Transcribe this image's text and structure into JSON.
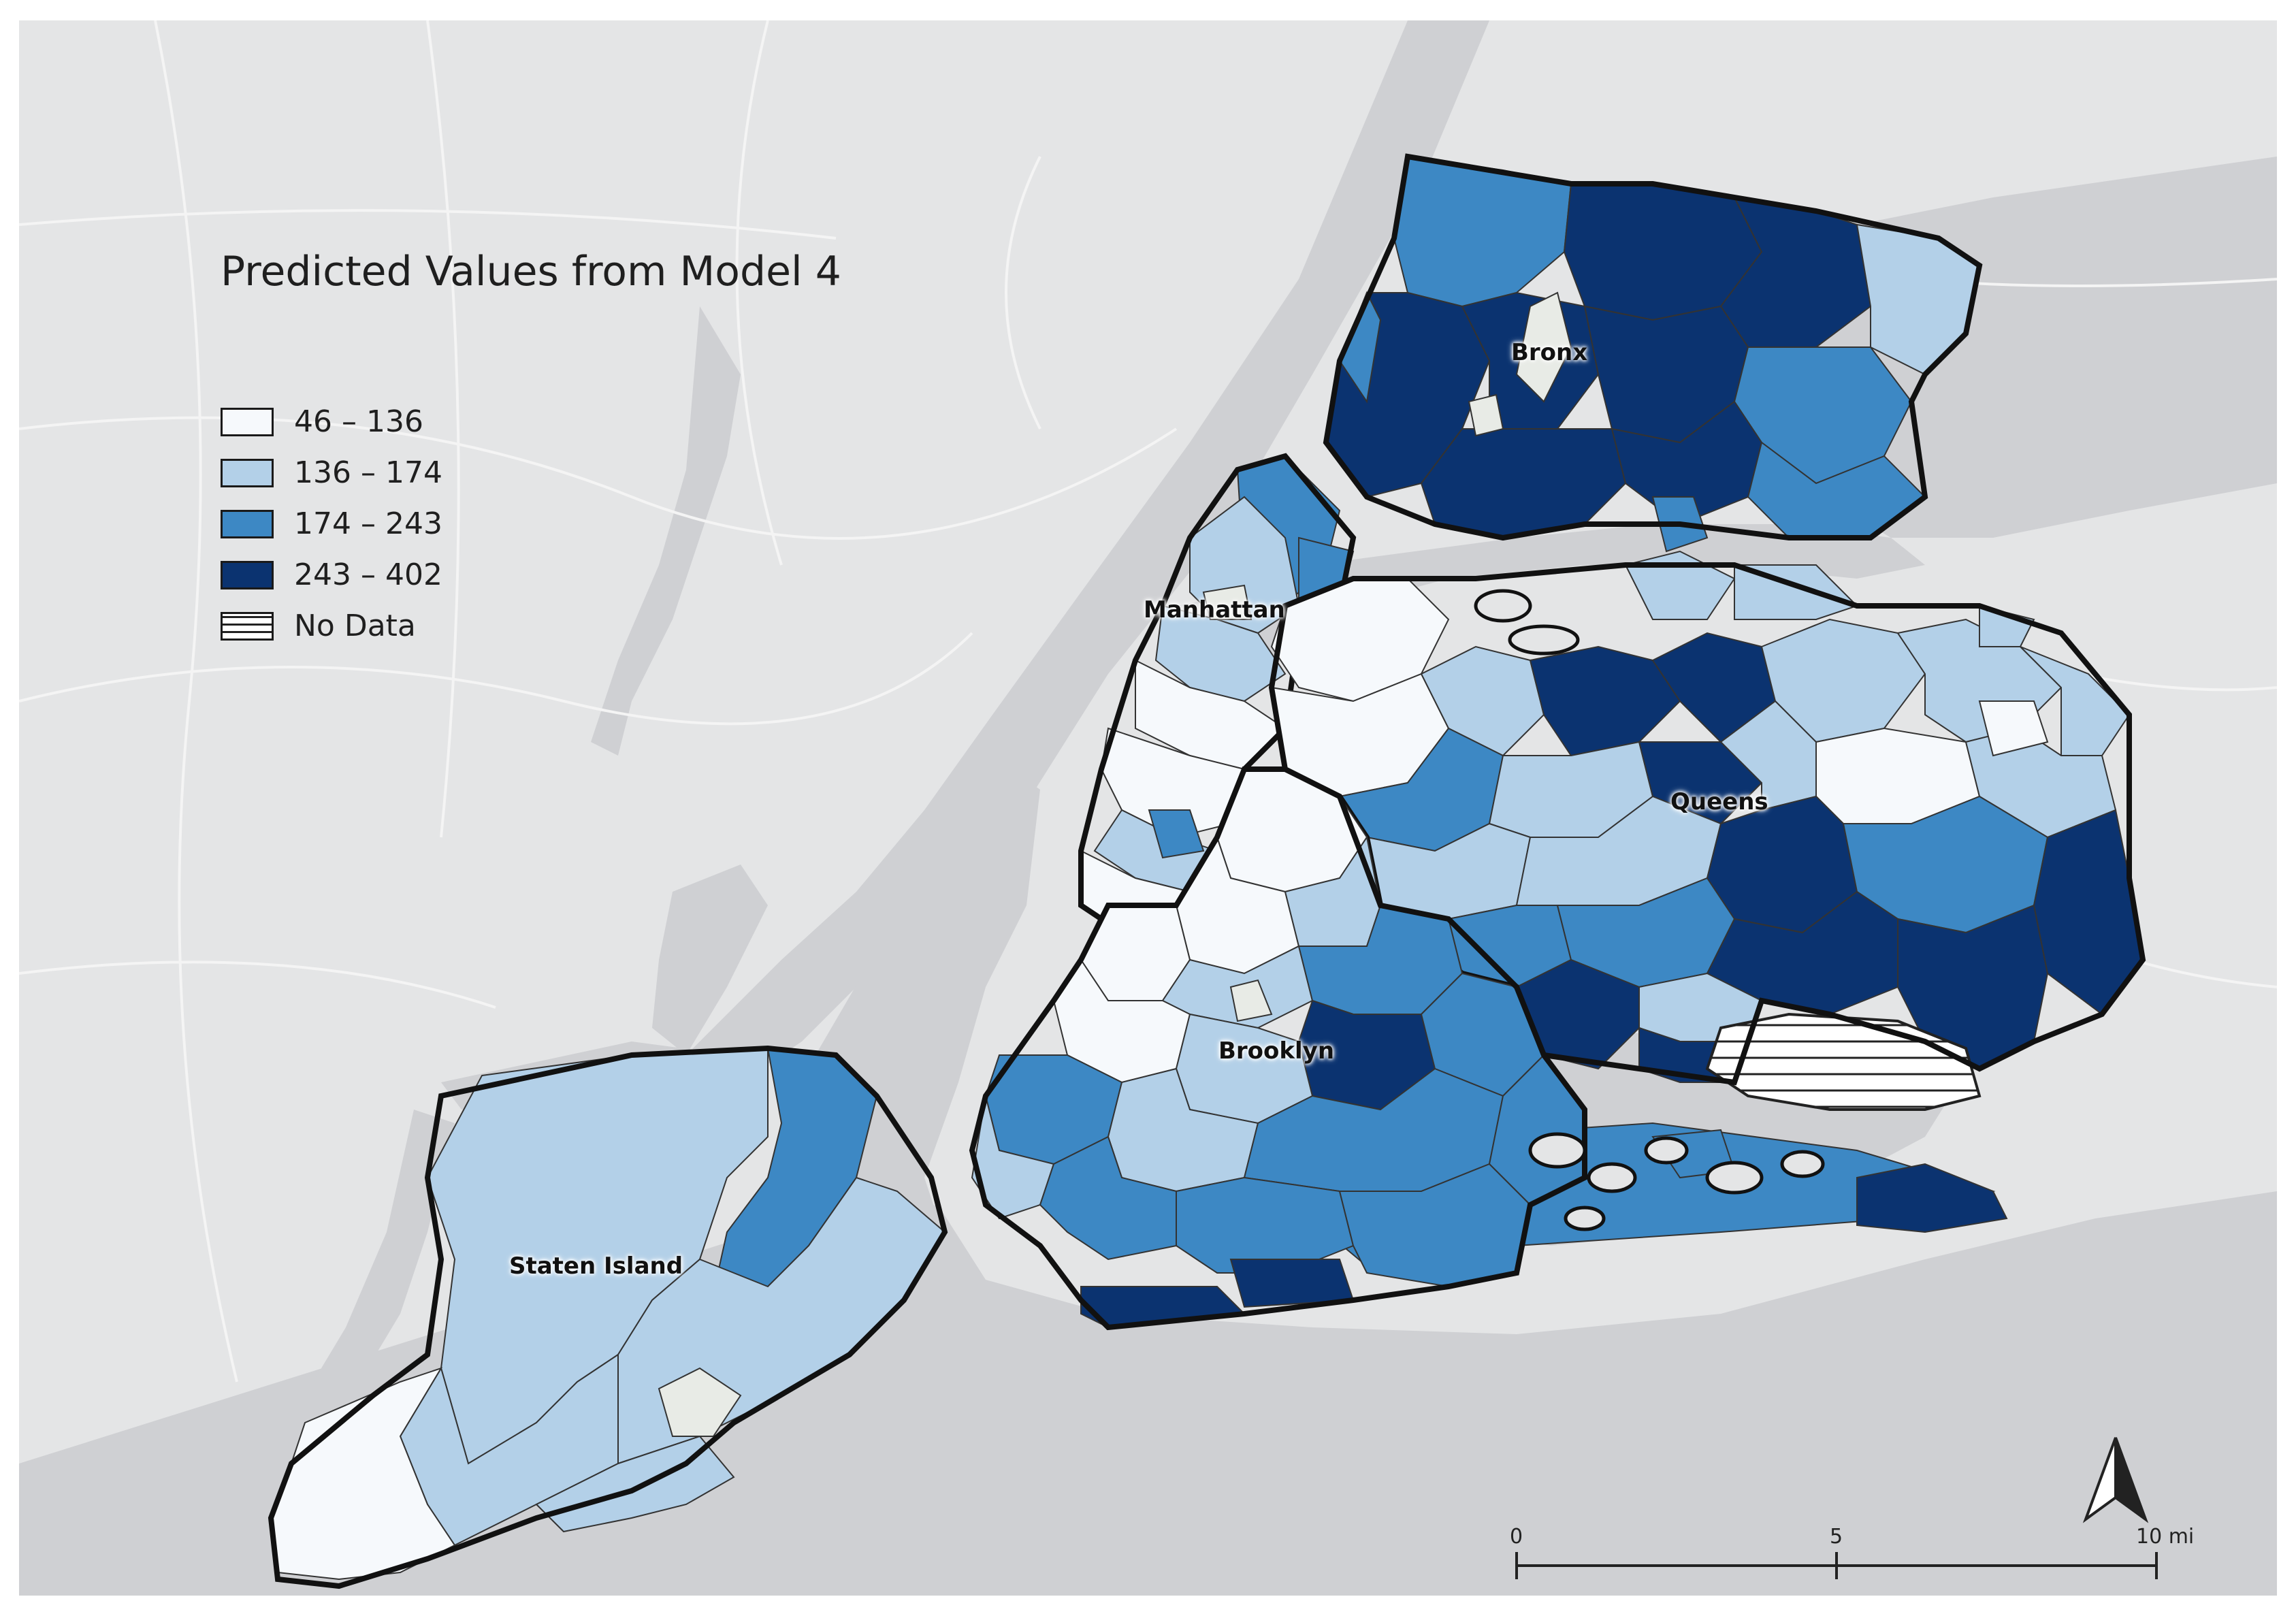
{
  "map": {
    "title": "Predicted Values from Model 4",
    "legend": [
      {
        "label": "46 – 136",
        "color": "#f6f9fc"
      },
      {
        "label": "136 – 174",
        "color": "#b3d0e8"
      },
      {
        "label": "174 – 243",
        "color": "#3d88c4"
      },
      {
        "label": "243 – 402",
        "color": "#0b3370"
      },
      {
        "label": "No Data",
        "color": "hatch"
      }
    ],
    "boroughs": {
      "bronx": "Bronx",
      "manhattan": "Manhattan",
      "queens": "Queens",
      "brooklyn": "Brooklyn",
      "staten_island": "Staten Island"
    },
    "scale_bar": {
      "start": "0",
      "mid": "5",
      "end": "10 mi"
    },
    "colors": {
      "water": "#cfd0d3",
      "land": "#e4e5e6",
      "roads": "#f3f3f3"
    }
  }
}
